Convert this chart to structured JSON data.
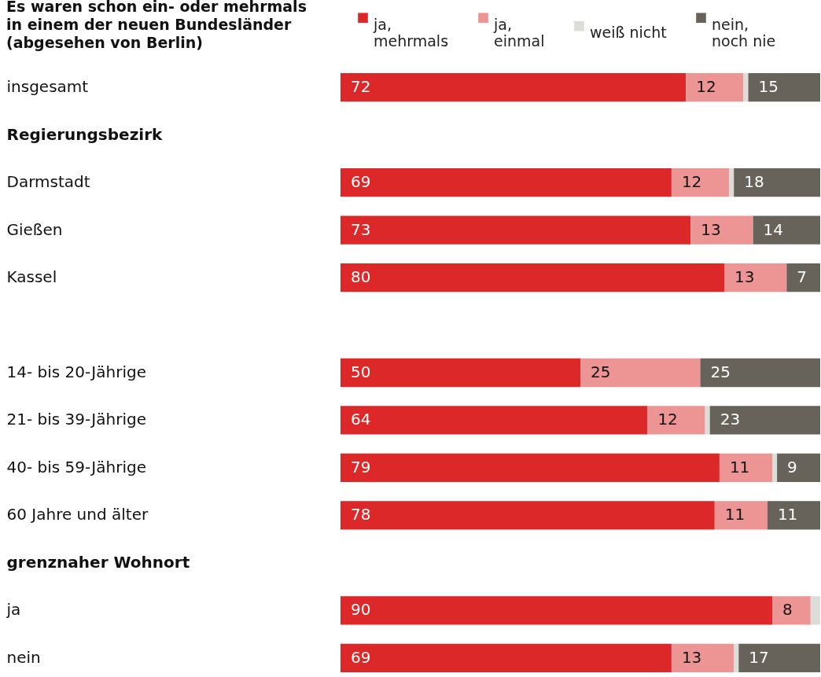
{
  "chart_data": {
    "type": "bar",
    "orientation": "horizontal",
    "stacked": true,
    "title": "Es waren schon ein- oder mehrmals in einem der neuen Bundesländer (abgesehen von Berlin)",
    "categories": [
      "insgesamt",
      "Regierungsbezirk",
      "Darmstadt",
      "Gießen",
      "Kassel",
      null,
      "14- bis 20-Jährige",
      "21- bis 39-Jährige",
      "40- bis 59-Jährige",
      "60 Jahre und älter",
      "grenznaher Wohnort",
      "ja",
      "nein"
    ],
    "legend": "top",
    "series": [
      {
        "name": "ja, mehrmals",
        "color": "#dc2828",
        "values": [
          72,
          null,
          69,
          73,
          80,
          null,
          50,
          64,
          79,
          78,
          null,
          90,
          69
        ],
        "value_labels": [
          "72",
          null,
          "69",
          "73",
          "80",
          null,
          "50",
          "64",
          "79",
          "78",
          null,
          "90",
          "69"
        ]
      },
      {
        "name": "ja, einmal",
        "color": "#ec9594",
        "values": [
          12,
          null,
          12,
          13,
          13,
          null,
          25,
          12,
          11,
          11,
          null,
          8,
          13
        ],
        "value_labels": [
          "12",
          null,
          "12",
          "13",
          "13",
          null,
          "25",
          "12",
          "11",
          "11",
          null,
          "8",
          "13"
        ]
      },
      {
        "name": "weiß nicht",
        "color": "#dcdcd8",
        "values": [
          1,
          null,
          1,
          null,
          null,
          null,
          null,
          1,
          1,
          null,
          null,
          2,
          1
        ],
        "value_labels": [
          null,
          null,
          null,
          null,
          null,
          null,
          null,
          null,
          null,
          null,
          null,
          null,
          null
        ]
      },
      {
        "name": "nein, noch nie",
        "color": "#67635a",
        "values": [
          15,
          null,
          18,
          14,
          7,
          null,
          25,
          23,
          9,
          11,
          null,
          null,
          17
        ],
        "value_labels": [
          "15",
          null,
          "18",
          "14",
          "7",
          null,
          "25",
          "23",
          "9",
          "11",
          null,
          null,
          "17"
        ]
      }
    ]
  }
}
